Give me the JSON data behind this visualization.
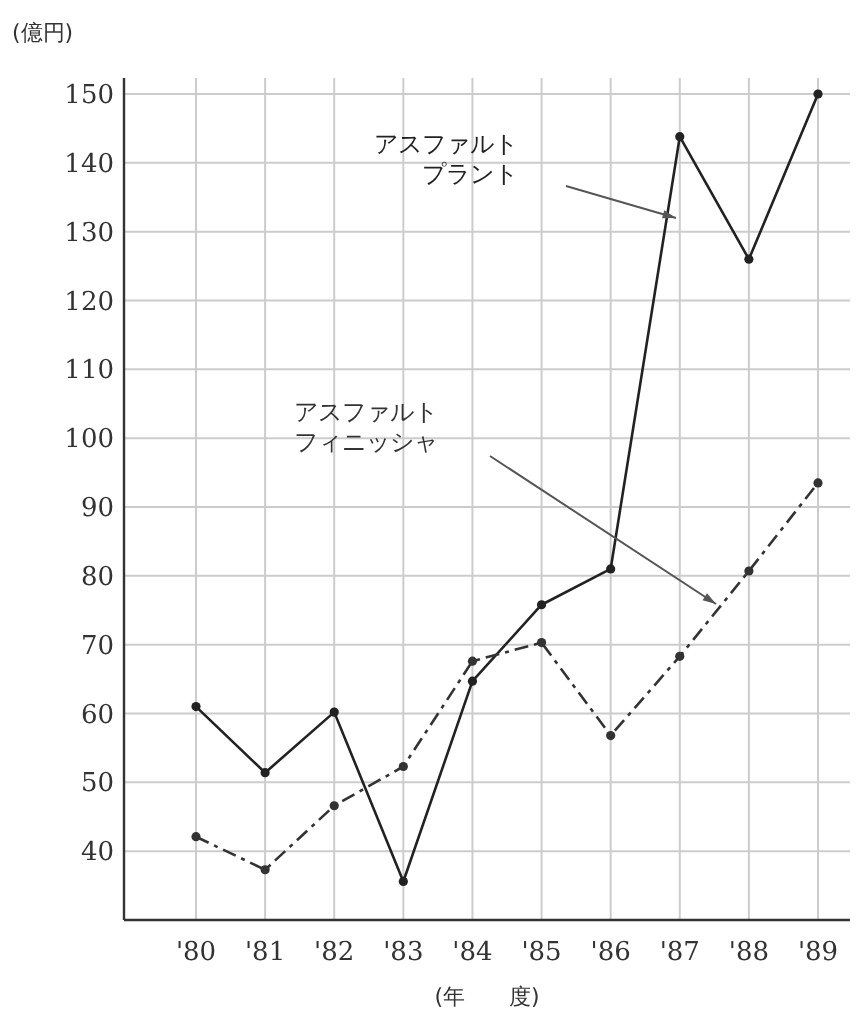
{
  "chart_data": {
    "type": "line",
    "ylabel": "(億円)",
    "xlabel": "(年　　度)",
    "categories": [
      "'80",
      "'81",
      "'82",
      "'83",
      "'84",
      "'85",
      "'86",
      "'87",
      "'88",
      "'89"
    ],
    "ylim": [
      30,
      150
    ],
    "yticks": [
      40,
      50,
      60,
      70,
      80,
      90,
      100,
      110,
      120,
      130,
      140,
      150
    ],
    "grid": true,
    "marker": "circle",
    "series": [
      {
        "name": "アスファルトプラント",
        "color": "#222222",
        "line_style": "solid",
        "values": [
          61,
          51.4,
          60.2,
          35.6,
          64.7,
          75.8,
          81,
          143.8,
          126,
          150
        ]
      },
      {
        "name": "アスファルトフィニッシャ",
        "color": "#333333",
        "line_style": "dashed",
        "values": [
          42.1,
          37.3,
          46.6,
          52.3,
          67.6,
          70.3,
          56.8,
          68.3,
          80.7,
          93.5
        ]
      }
    ]
  }
}
